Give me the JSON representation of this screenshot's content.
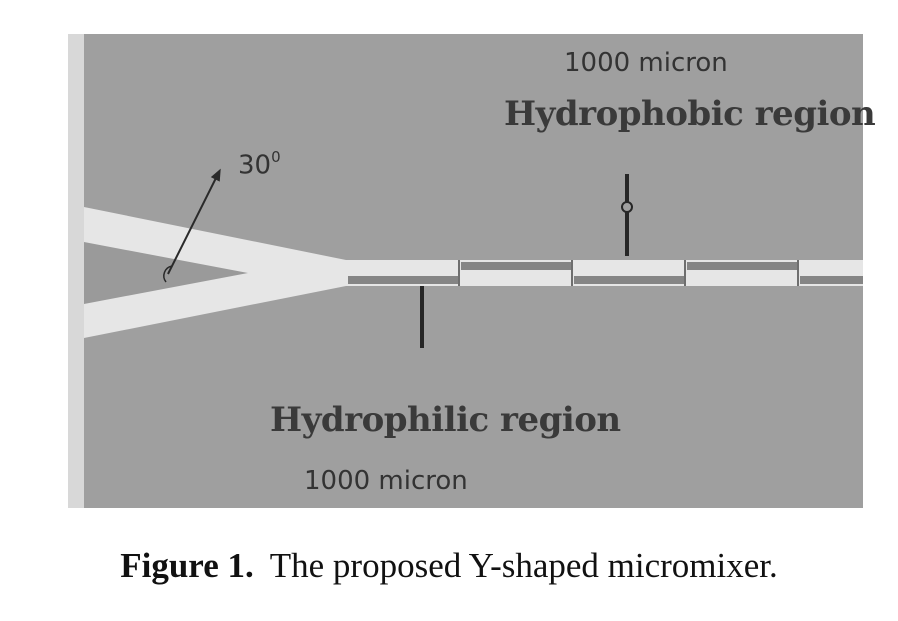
{
  "diagram": {
    "top_length_label": "1000 micron",
    "top_region_label": "Hydrophobic region",
    "bottom_region_label": "Hydrophilic region",
    "bottom_length_label": "1000 micron",
    "angle_value": "30",
    "angle_unit": "0"
  },
  "caption": {
    "figure_label": "Figure 1.",
    "text": "The proposed Y-shaped micromixer."
  },
  "colors": {
    "background": "#9f9f9f",
    "channel_fill": "#e6e6e6",
    "hydrophobic_segment": "#858585",
    "marker": "#262626"
  }
}
